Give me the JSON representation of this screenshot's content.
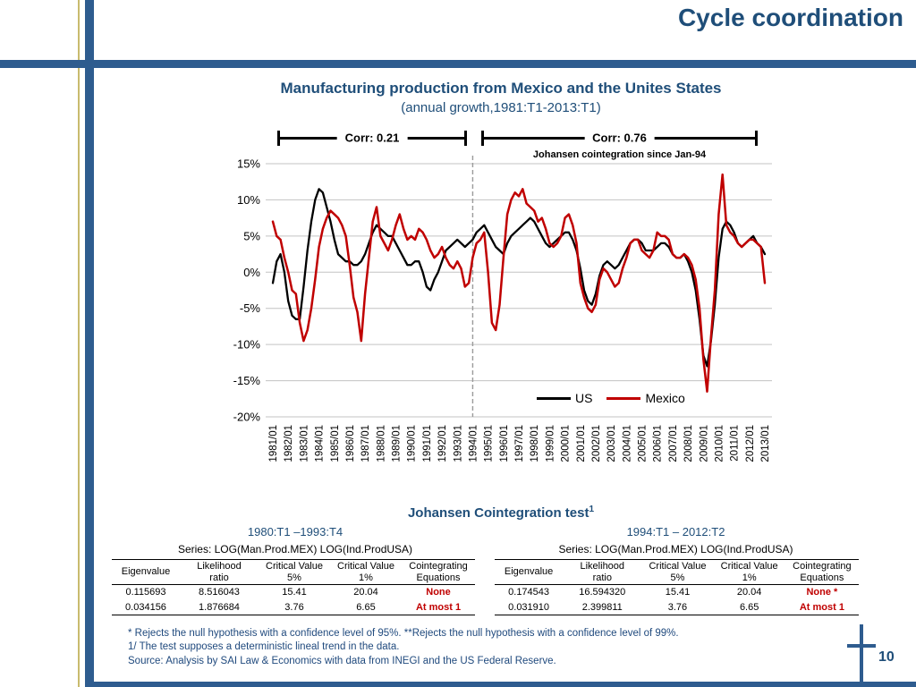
{
  "slide": {
    "header_title": "Cycle coordination",
    "page_number": "10"
  },
  "theme": {
    "accent_blue": "#2E5C8F",
    "title_blue": "#1F4E79",
    "footnote_blue": "#1F497D",
    "tan_accent": "#C9BB6E",
    "us_line": "#000000",
    "mexico_line": "#C00000",
    "gridline_gray": "#C3C3C3"
  },
  "chart": {
    "title": "Manufacturing production from Mexico and the Unites States",
    "subtitle": "(annual growth,1981:T1-2013:T1)",
    "corr_left": "Corr: 0.21",
    "corr_right": "Corr: 0.76",
    "johansen_note": "Johansen cointegration since Jan-94"
  },
  "chart_data": {
    "type": "line",
    "title": "Manufacturing production from Mexico and the Unites States (annual growth, 1981:T1-2013:T1)",
    "frequency": "quarterly",
    "ylim": [
      -20,
      15
    ],
    "ytick_step": 5,
    "ytick_labels": [
      "15%",
      "10%",
      "5%",
      "0%",
      "-5%",
      "-10%",
      "-15%",
      "-20%"
    ],
    "grid": "horizontal",
    "legend_position": "inside-bottom-right",
    "dashed_vline_at": "1994/01",
    "annotations": [
      {
        "label": "Corr: 0.21",
        "span": [
          "1981/01",
          "1994/01"
        ]
      },
      {
        "label": "Corr: 0.76",
        "span": [
          "1994/01",
          "2013/01"
        ]
      },
      {
        "label": "Johansen cointegration since Jan-94",
        "position": "above-right-span"
      }
    ],
    "x_tick_labels": [
      "1981/01",
      "1982/01",
      "1983/01",
      "1984/01",
      "1985/01",
      "1986/01",
      "1987/01",
      "1988/01",
      "1989/01",
      "1990/01",
      "1991/01",
      "1992/01",
      "1993/01",
      "1994/01",
      "1995/01",
      "1996/01",
      "1997/01",
      "1998/01",
      "1999/01",
      "2000/01",
      "2001/01",
      "2002/01",
      "2003/01",
      "2004/01",
      "2005/01",
      "2006/01",
      "2007/01",
      "2008/01",
      "2009/01",
      "2010/01",
      "2011/01",
      "2012/01",
      "2013/01"
    ],
    "series": [
      {
        "name": "US",
        "color": "#000000",
        "values": [
          -1.5,
          1.5,
          2.5,
          0,
          -4,
          -6,
          -6.5,
          -6.5,
          -2,
          3,
          7,
          10,
          11.5,
          11,
          9,
          7,
          4.5,
          2.5,
          2,
          1.5,
          1.5,
          1,
          1,
          1.5,
          2.5,
          4,
          5.5,
          6.5,
          6,
          5.5,
          5,
          5,
          4,
          3,
          2,
          1,
          1,
          1.5,
          1.5,
          0,
          -2,
          -2.5,
          -1,
          0,
          1.5,
          3,
          3.5,
          4,
          4.5,
          4,
          3.5,
          4,
          4.5,
          5.5,
          6,
          6.5,
          5.5,
          4.5,
          3.5,
          3,
          2.5,
          4,
          5,
          5.5,
          6,
          6.5,
          7,
          7.5,
          7,
          6,
          5,
          4,
          3.5,
          4,
          4.5,
          5,
          5.5,
          5.5,
          4.5,
          3,
          0.5,
          -2.5,
          -4,
          -4.5,
          -3,
          -0.5,
          1,
          1.5,
          1,
          0.5,
          1,
          2,
          3,
          4,
          4.5,
          4.5,
          4,
          3,
          3,
          3,
          3.5,
          4,
          4,
          3.5,
          2.5,
          2,
          2,
          2.5,
          1.5,
          0,
          -2.5,
          -6.5,
          -11.5,
          -13,
          -9.5,
          -4.5,
          2,
          6,
          7,
          6.5,
          5.5,
          4,
          3.5,
          4,
          4.5,
          5,
          4,
          3.5,
          2.5
        ]
      },
      {
        "name": "Mexico",
        "color": "#C00000",
        "values": [
          7,
          5,
          4.5,
          2,
          0,
          -2.5,
          -3,
          -7,
          -9.5,
          -8,
          -5,
          -1,
          3.5,
          6,
          7.5,
          8.5,
          8,
          7.5,
          6.5,
          5,
          1,
          -3.5,
          -5.5,
          -9.5,
          -3,
          2,
          7,
          9,
          5,
          4,
          3,
          4.5,
          6.5,
          8,
          6,
          4.5,
          5,
          4.5,
          6,
          5.5,
          4.5,
          3,
          2,
          2.5,
          3.5,
          2,
          1,
          0.5,
          1.5,
          0.5,
          -2,
          -1.5,
          2,
          4,
          4.5,
          5.5,
          0,
          -7,
          -8,
          -4.5,
          2,
          8,
          10,
          11,
          10.5,
          11.5,
          9.5,
          9,
          8.5,
          7,
          7.5,
          6,
          4,
          3.5,
          4,
          5,
          7.5,
          8,
          6.5,
          4,
          -1.5,
          -3.5,
          -5,
          -5.5,
          -4.5,
          -1,
          0.5,
          0,
          -1,
          -2,
          -1.5,
          0.5,
          2,
          4,
          4.5,
          4.5,
          3,
          2.5,
          2,
          3,
          5.5,
          5,
          5,
          4.5,
          2.5,
          2,
          2,
          2.5,
          2,
          1,
          -1,
          -5,
          -12,
          -16.5,
          -9,
          -2.5,
          8,
          13.5,
          6.5,
          5.5,
          5,
          4,
          3.5,
          4,
          4.5,
          4.5,
          4,
          3.5,
          -1.5
        ]
      }
    ]
  },
  "cointegration": {
    "section_title": "Johansen Cointegration test",
    "section_title_sup": "1",
    "left": {
      "period": "1980:T1 –1993:T4",
      "series_label": "Series: LOG(Man.Prod.MEX) LOG(Ind.ProdUSA)",
      "headers": [
        "Eigenvalue",
        "Likelihood\nratio",
        "Critical Value\n5%",
        "Critical Value\n1%",
        "Cointegrating\nEquations"
      ],
      "rows": [
        [
          "0.115693",
          "8.516043",
          "15.41",
          "20.04",
          "None"
        ],
        [
          "0.034156",
          "1.876684",
          "3.76",
          "6.65",
          "At most 1"
        ]
      ]
    },
    "right": {
      "period": "1994:T1 – 2012:T2",
      "series_label": "Series: LOG(Man.Prod.MEX) LOG(Ind.ProdUSA)",
      "headers": [
        "Eigenvalue",
        "Likelihood\nratio",
        "Critical Value\n5%",
        "Critical Value\n1%",
        "Cointegrating\nEquations"
      ],
      "rows": [
        [
          "0.174543",
          "16.594320",
          "15.41",
          "20.04",
          "None *"
        ],
        [
          "0.031910",
          "2.399811",
          "3.76",
          "6.65",
          "At most 1"
        ]
      ]
    }
  },
  "footnotes": {
    "line1": "* Rejects  the null hypothesis with a confidence level of 95%. **Rejects the null hypothesis with a confidence level of 99%.",
    "line2": "1/ The test supposes a deterministic  lineal trend in the data.",
    "line3": "Source: Analysis by SAI Law & Economics with data from INEGI and the  US Federal Reserve."
  }
}
